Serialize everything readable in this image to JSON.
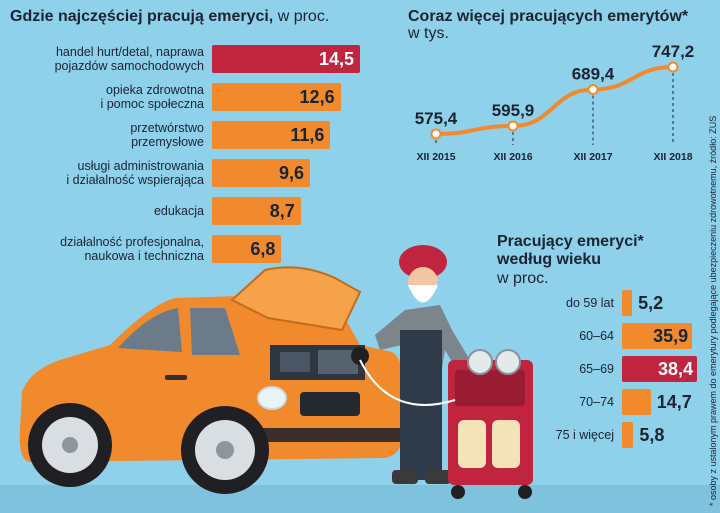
{
  "colors": {
    "background": "#8fd0ea",
    "orange": "#f08a2c",
    "crimson": "#c0243f",
    "line": "#f08a2c",
    "text": "#1b2430"
  },
  "chart_data": [
    {
      "type": "bar",
      "orientation": "horizontal",
      "title": "Gdzie najczęściej pracują emeryci,",
      "unit": "w proc.",
      "categories": [
        "handel hurt/detal, naprawa pojazdów samochodowych",
        "opieka zdrowotna i pomoc społeczna",
        "przetwórstwo przemysłowe",
        "usługi administrowania i działalność wspierająca",
        "edukacja",
        "działalność profesjonalna, naukowa i techniczna"
      ],
      "category_lines": [
        [
          "handel hurt/detal, naprawa",
          "pojazdów samochodowych"
        ],
        [
          "opieka zdrowotna",
          "i pomoc społeczna"
        ],
        [
          "przetwórstwo",
          "przemysłowe"
        ],
        [
          "usługi administrowania",
          "i działalność wspierająca"
        ],
        [
          "edukacja"
        ],
        [
          "działalność profesjonalna,",
          "naukowa i techniczna"
        ]
      ],
      "values": [
        14.5,
        12.6,
        11.6,
        9.6,
        8.7,
        6.8
      ],
      "value_labels": [
        "14,5",
        "12,6",
        "11,6",
        "9,6",
        "8,7",
        "6,8"
      ],
      "highlight_index": 0
    },
    {
      "type": "line",
      "title": "Coraz więcej pracujących emerytów*",
      "unit": "w tys.",
      "categories": [
        "XII 2015",
        "XII 2016",
        "XII 2017",
        "XII 2018"
      ],
      "values": [
        575.4,
        595.9,
        689.4,
        747.2
      ],
      "value_labels": [
        "575,4",
        "595,9",
        "689,4",
        "747,2"
      ]
    },
    {
      "type": "bar",
      "orientation": "horizontal",
      "title_lines": [
        "Pracujący emeryci*",
        "według wieku"
      ],
      "unit": "w proc.",
      "categories": [
        "do 59 lat",
        "60–64",
        "65–69",
        "70–74",
        "75 i więcej"
      ],
      "values": [
        5.2,
        35.9,
        38.4,
        14.7,
        5.8
      ],
      "value_labels": [
        "5,2",
        "35,9",
        "38,4",
        "14,7",
        "5,8"
      ],
      "highlight_index": 2
    }
  ],
  "footnote": "* osoby z ustalonym prawem do emerytury podlegające ubezpieczeniu zdrowotnemu, źródło: ZUS",
  "illustration": {
    "description_icons": [
      "car-icon",
      "mechanic-icon",
      "diagnostic-cart-icon"
    ]
  }
}
